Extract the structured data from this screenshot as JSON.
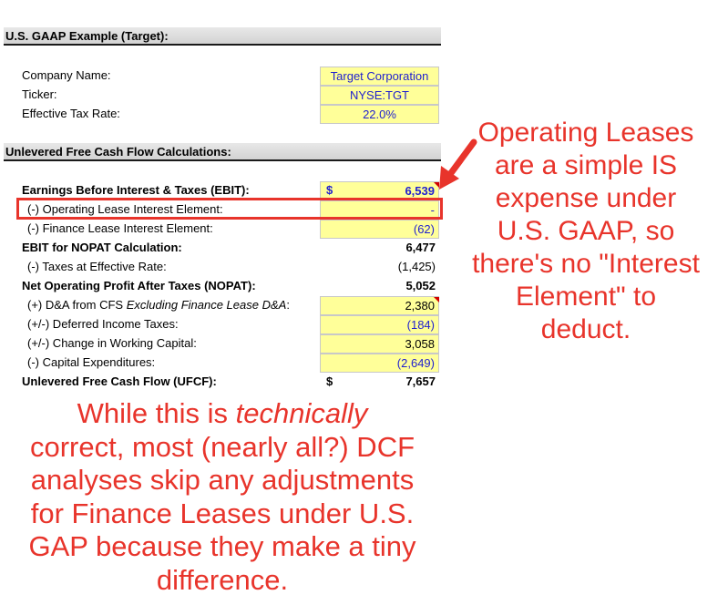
{
  "sections": {
    "gaap_header": "U.S. GAAP Example (Target):",
    "ufcf_header": "Unlevered Free Cash Flow Calculations:"
  },
  "company": {
    "name_label": "Company Name:",
    "name_value": "Target Corporation",
    "ticker_label": "Ticker:",
    "ticker_value": "NYSE:TGT",
    "tax_label": "Effective Tax Rate:",
    "tax_value": "22.0%"
  },
  "rows": {
    "ebit_label": "Earnings Before Interest & Taxes (EBIT):",
    "ebit_currency": "$",
    "ebit_value": "6,539",
    "op_lease_label": "(-) Operating Lease Interest Element:",
    "op_lease_value": "-",
    "fin_lease_label": "(-) Finance Lease Interest Element:",
    "fin_lease_value": "(62)",
    "ebit_nopat_label": "EBIT for NOPAT Calculation:",
    "ebit_nopat_value": "6,477",
    "taxes_label": "(-) Taxes at Effective Rate:",
    "taxes_value": "(1,425)",
    "nopat_label": "Net Operating Profit After Taxes (NOPAT):",
    "nopat_value": "5,052",
    "da_label_prefix": "(+) D&A from CFS ",
    "da_label_italic": "Excluding Finance Lease D&A",
    "da_label_suffix": ":",
    "da_value": "2,380",
    "dit_label": "(+/-) Deferred Income Taxes:",
    "dit_value": "(184)",
    "wc_label": "(+/-) Change in Working Capital:",
    "wc_value": "3,058",
    "capex_label": "(-) Capital Expenditures:",
    "capex_value": "(2,649)",
    "ufcf_label": "Unlevered Free Cash Flow (UFCF):",
    "ufcf_currency": "$",
    "ufcf_value": "7,657"
  },
  "annotations": {
    "right_note": [
      "Operating Leases",
      "are a simple IS",
      "expense under",
      "U.S. GAAP, so",
      "there's no \"Interest",
      "Element\" to",
      "deduct."
    ],
    "bottom_line1_prefix": "While this is ",
    "bottom_line1_italic": "technically",
    "bottom_rest": [
      "correct, most (nearly all?) DCF",
      "analyses skip any adjustments",
      "for Finance Leases under U.S.",
      "GAP because they make a tiny",
      "difference."
    ]
  },
  "colors": {
    "accent_red": "#e8342b",
    "input_yellow": "#ffff99",
    "input_blue": "#1f1fd0"
  }
}
